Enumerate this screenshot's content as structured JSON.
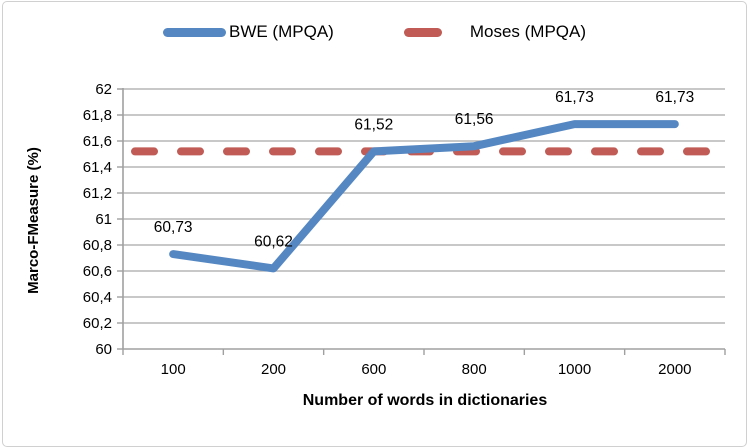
{
  "figure": {
    "background": "#ffffff",
    "border_color": "#d0d0d0"
  },
  "legend": {
    "position": "top-center",
    "items": [
      {
        "label": "BWE (MPQA)",
        "color": "#5587c2",
        "style": "solid"
      },
      {
        "label": "Moses (MPQA)",
        "color": "#c05b55",
        "style": "dashed"
      }
    ]
  },
  "axes": {
    "ylabel": "Marco-FMeasure (%)",
    "xlabel": "Number of words in dictionaries",
    "line_color": "#a0a0a0",
    "grid_color": "#a8a8a8"
  },
  "chart_data": {
    "type": "line",
    "title": "",
    "xlabel": "Number of words in dictionaries",
    "ylabel": "Marco-FMeasure (%)",
    "categories": [
      "100",
      "200",
      "600",
      "800",
      "1000",
      "2000"
    ],
    "series": [
      {
        "name": "BWE (MPQA)",
        "values": [
          60.73,
          60.62,
          61.52,
          61.56,
          61.73,
          61.73
        ],
        "point_labels": [
          "60,73",
          "60,62",
          "61,52",
          "61,56",
          "61,73",
          "61,73"
        ],
        "color": "#5587c2",
        "dash": false
      },
      {
        "name": "Moses (MPQA)",
        "values": [
          61.52,
          61.52,
          61.52,
          61.52,
          61.52,
          61.52
        ],
        "point_labels": [],
        "color": "#c05b55",
        "dash": true
      }
    ],
    "ylim": [
      60,
      62
    ],
    "ytick_step": 0.2,
    "ytick_labels": [
      "60",
      "60,2",
      "60,4",
      "60,6",
      "60,8",
      "61",
      "61,2",
      "61,4",
      "61,6",
      "61,8",
      "62"
    ],
    "grid": "horizontal",
    "legend_position": "top",
    "decimal_separator": ","
  }
}
